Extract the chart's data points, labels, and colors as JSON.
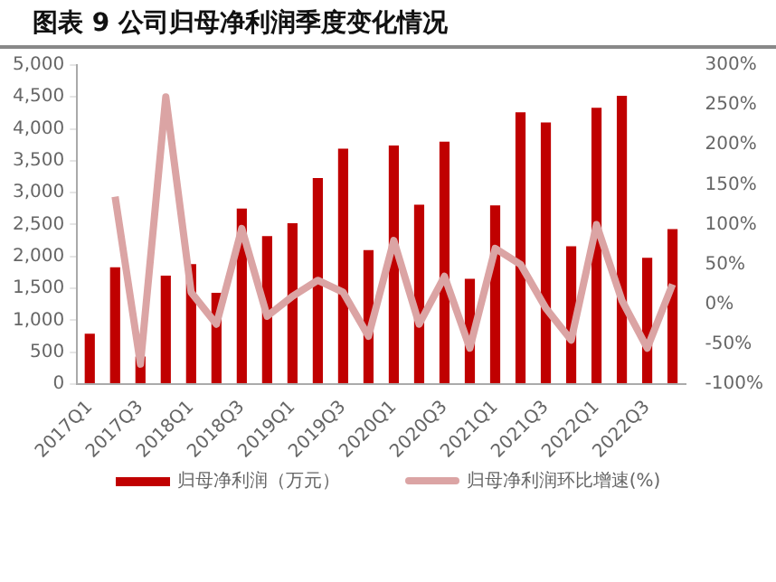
{
  "chart_data": {
    "type": "bar",
    "title": "图表 9 公司归母净利润季度变化情况",
    "categories": [
      "2017Q1",
      null,
      "2017Q3",
      null,
      "2018Q1",
      null,
      "2018Q3",
      null,
      "2019Q1",
      null,
      "2019Q3",
      null,
      "2020Q1",
      null,
      "2020Q3",
      null,
      "2021Q1",
      null,
      "2021Q3",
      null,
      "2022Q1",
      null,
      "2022Q3",
      null
    ],
    "series": [
      {
        "name": "归母净利润（万元）",
        "color": "#c00000",
        "values": [
          790,
          1830,
          430,
          1700,
          1880,
          1430,
          2750,
          2320,
          2520,
          3230,
          3690,
          2100,
          3740,
          2810,
          3800,
          1650,
          2800,
          4260,
          4100,
          2160,
          4330,
          4520,
          1980,
          2430
        ]
      },
      {
        "name": "归母净利润环比增速(%)",
        "type": "line",
        "axis": "y2",
        "color": "#dba4a4",
        "values": [
          null,
          135,
          -75,
          260,
          15,
          -25,
          95,
          -15,
          10,
          30,
          15,
          -40,
          80,
          -25,
          35,
          -55,
          70,
          50,
          -5,
          -45,
          100,
          5,
          -55,
          25
        ]
      }
    ],
    "ylim": [
      0,
      5000
    ],
    "yticks": [
      0,
      500,
      {
        "value": 1000,
        "label": "1,000"
      },
      {
        "value": 1500,
        "label": "1,500"
      },
      {
        "value": 2000,
        "label": "2,000"
      },
      {
        "value": 2500,
        "label": "2,500"
      },
      {
        "value": 3000,
        "label": "3,000"
      },
      {
        "value": 3500,
        "label": "3,500"
      },
      {
        "value": 4000,
        "label": "4,000"
      },
      {
        "value": 4500,
        "label": "4,500"
      },
      {
        "value": 5000,
        "label": "5,000"
      }
    ],
    "y2lim": [
      -100,
      300
    ],
    "y2ticks": [
      {
        "value": -100,
        "label": "-100%"
      },
      {
        "value": -50,
        "label": "-50%"
      },
      {
        "value": 0,
        "label": "0%"
      },
      {
        "value": 50,
        "label": "50%"
      },
      {
        "value": 100,
        "label": "100%"
      },
      {
        "value": 150,
        "label": "150%"
      },
      {
        "value": 200,
        "label": "200%"
      },
      {
        "value": 250,
        "label": "250%"
      },
      {
        "value": 300,
        "label": "300%"
      }
    ],
    "grid": false,
    "legend": "bottom",
    "marker": "none",
    "line_style": "solid"
  }
}
